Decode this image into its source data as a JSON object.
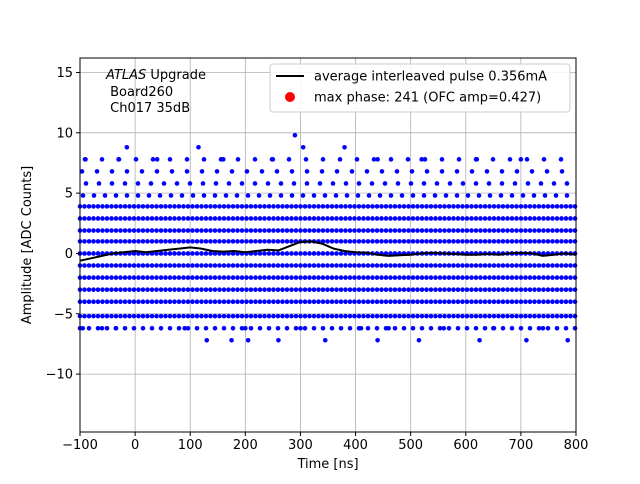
{
  "chart_data": {
    "type": "scatter",
    "xlabel": "Time [ns]",
    "ylabel": "Amplitude [ADC Counts]",
    "xlim": [
      -100,
      800
    ],
    "ylim": [
      -14.8,
      16.2
    ],
    "grid": true,
    "legend_placement": "upper-right",
    "x_ticks": [
      -100,
      0,
      100,
      200,
      300,
      400,
      500,
      600,
      700,
      800
    ],
    "y_ticks": [
      -10,
      -5,
      0,
      5,
      10,
      15
    ],
    "x_tick_labels": [
      "−100",
      "0",
      "100",
      "200",
      "300",
      "400",
      "500",
      "600",
      "700",
      "800"
    ],
    "y_tick_labels": [
      "−10",
      "−5",
      "0",
      "5",
      "10",
      "15"
    ],
    "annotation": {
      "italic": "ATLAS",
      "line1_rest": " Upgrade",
      "line2": " Board260",
      "line3": " Ch017 35dB"
    },
    "series": [
      {
        "name": "average interleaved pulse 0.356mA",
        "color": "#000000",
        "kind": "line",
        "points": [
          [
            -100,
            -0.6
          ],
          [
            -80,
            -0.4
          ],
          [
            -60,
            -0.2
          ],
          [
            -40,
            0.0
          ],
          [
            -20,
            0.1
          ],
          [
            0,
            0.2
          ],
          [
            20,
            0.1
          ],
          [
            40,
            0.2
          ],
          [
            60,
            0.3
          ],
          [
            80,
            0.4
          ],
          [
            100,
            0.5
          ],
          [
            120,
            0.4
          ],
          [
            140,
            0.2
          ],
          [
            160,
            0.15
          ],
          [
            180,
            0.2
          ],
          [
            200,
            0.1
          ],
          [
            220,
            0.2
          ],
          [
            240,
            0.3
          ],
          [
            260,
            0.25
          ],
          [
            280,
            0.6
          ],
          [
            300,
            0.95
          ],
          [
            320,
            1.0
          ],
          [
            340,
            0.8
          ],
          [
            360,
            0.4
          ],
          [
            380,
            0.2
          ],
          [
            400,
            0.1
          ],
          [
            420,
            0.05
          ],
          [
            440,
            -0.1
          ],
          [
            460,
            -0.2
          ],
          [
            480,
            -0.15
          ],
          [
            500,
            -0.1
          ],
          [
            520,
            0.0
          ],
          [
            540,
            0.05
          ],
          [
            560,
            0.0
          ],
          [
            580,
            -0.05
          ],
          [
            600,
            -0.1
          ],
          [
            620,
            -0.1
          ],
          [
            640,
            -0.05
          ],
          [
            660,
            -0.1
          ],
          [
            680,
            0.0
          ],
          [
            700,
            0.05
          ],
          [
            720,
            0.0
          ],
          [
            740,
            -0.2
          ],
          [
            760,
            -0.1
          ],
          [
            780,
            0.0
          ],
          [
            800,
            -0.1
          ]
        ]
      },
      {
        "name": "max phase: 241 (OFC amp=0.427)",
        "color": "#ff0000",
        "kind": "point",
        "points": [
          [
            241,
            0.427
          ]
        ]
      },
      {
        "color": "#0000ff",
        "kind": "scatter-levels",
        "dense_levels": [
          -5.2,
          -4.0,
          -3.0,
          -2.0,
          -1.0,
          0.0,
          1.0,
          1.9,
          2.9,
          3.9
        ],
        "sparse_levels": [
          -6.2,
          4.8,
          5.8,
          6.8,
          7.8
        ],
        "outliers": [
          [
            -95,
            -6.2
          ],
          [
            -60,
            -6.2
          ],
          [
            -35,
            -6.2
          ],
          [
            90,
            -6.2
          ],
          [
            200,
            -6.2
          ],
          [
            300,
            -6.2
          ],
          [
            410,
            -6.2
          ],
          [
            460,
            -6.2
          ],
          [
            560,
            -6.2
          ],
          [
            650,
            -6.2
          ],
          [
            740,
            -6.2
          ],
          [
            -90,
            7.8
          ],
          [
            -15,
            8.8
          ],
          [
            115,
            8.8
          ],
          [
            290,
            9.8
          ],
          [
            305,
            8.8
          ],
          [
            380,
            8.8
          ],
          [
            620,
            7.8
          ],
          [
            -30,
            7.8
          ],
          [
            40,
            7.8
          ],
          [
            160,
            7.8
          ],
          [
            250,
            7.8
          ],
          [
            440,
            7.8
          ],
          [
            520,
            7.8
          ],
          [
            700,
            7.8
          ],
          [
            130,
            -7.2
          ],
          [
            175,
            -7.2
          ],
          [
            205,
            -7.2
          ],
          [
            260,
            -7.2
          ],
          [
            345,
            -7.2
          ],
          [
            440,
            -7.2
          ],
          [
            515,
            -7.2
          ],
          [
            625,
            -7.2
          ],
          [
            710,
            -7.2
          ],
          [
            785,
            -7.2
          ]
        ]
      }
    ]
  }
}
